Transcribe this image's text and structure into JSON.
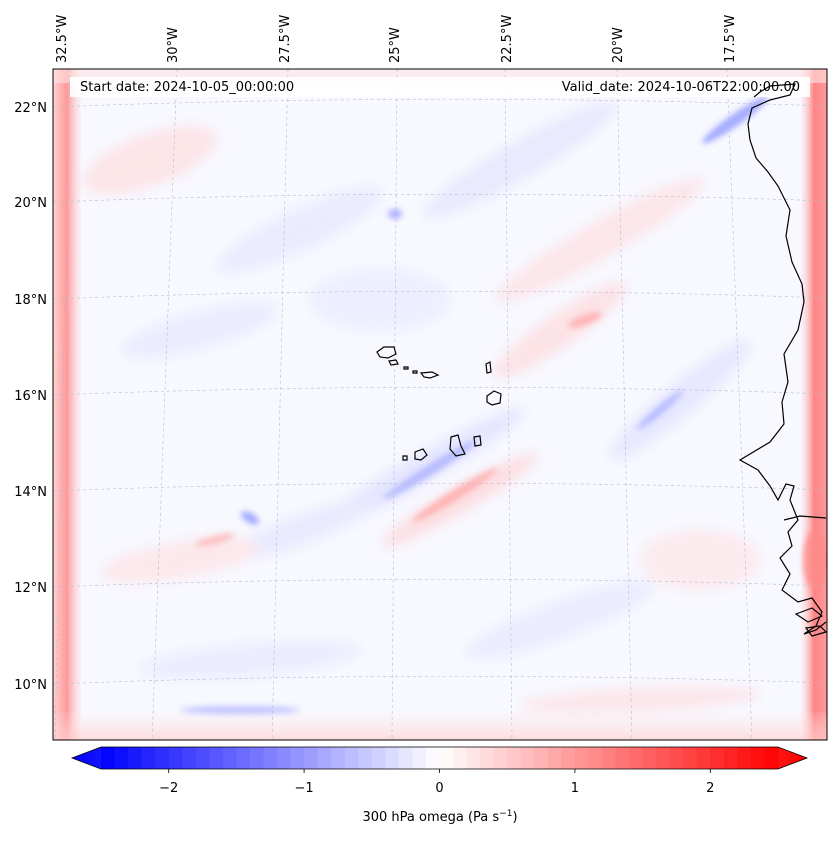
{
  "header": {
    "start_date": "Start date: 2024-10-05_00:00:00",
    "valid_date": "Valid_date: 2024-10-06T22:00:00.00"
  },
  "lon_labels": [
    "32.5°W",
    "30°W",
    "27.5°W",
    "25°W",
    "22.5°W",
    "20°W",
    "17.5°W"
  ],
  "lat_labels": [
    "22°N",
    "20°N",
    "18°N",
    "16°N",
    "14°N",
    "12°N",
    "10°N"
  ],
  "colorbar": {
    "ticks": [
      "−2",
      "−1",
      "0",
      "1",
      "2"
    ],
    "tick_values": [
      -2,
      -1,
      0,
      1,
      2
    ],
    "vmin": -2.7,
    "vmax": 2.7,
    "label_main": "300 hPa omega (Pa s",
    "label_sup": "−1",
    "label_end": ")",
    "colors": {
      "negative": "#0000ff",
      "zero": "#ffffff",
      "positive": "#ff0000"
    }
  },
  "map": {
    "field": "300 hPa omega",
    "background": "#f8f8ff",
    "coastline_color": "#000000"
  }
}
